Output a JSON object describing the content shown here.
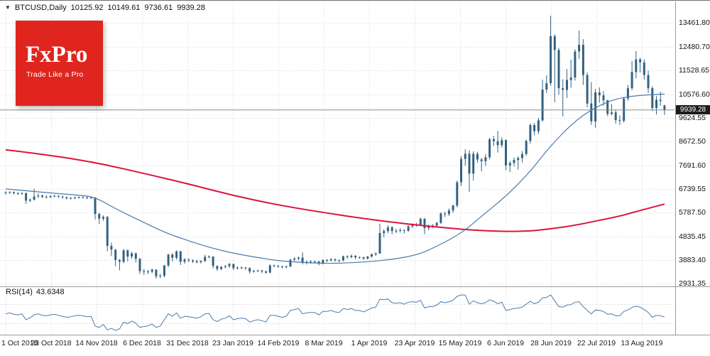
{
  "header": {
    "symbol_period": "BTCUSD,Daily",
    "open": "10125.92",
    "high": "10149.61",
    "low": "9736.61",
    "close": "9939.28"
  },
  "icons": {
    "symbol_marker": "▼"
  },
  "logo": {
    "brand": "FxPro",
    "slogan": "Trade Like a Pro",
    "bg_color": "#e0251f"
  },
  "price_scale": {
    "current_price": "9939.28",
    "tick_labels": [
      "13461.80",
      "12480.70",
      "11528.65",
      "10576.60",
      "9624.55",
      "8672.50",
      "7691.60",
      "6739.55",
      "5787.50",
      "4835.45",
      "3883.40",
      "2931.35"
    ]
  },
  "time_scale": {
    "labels": [
      "1 Oct 2018",
      "23 Oct 2018",
      "14 Nov 2018",
      "6 Dec 2018",
      "31 Dec 2018",
      "23 Jan 2019",
      "14 Feb 2019",
      "8 Mar 2019",
      "1 Apr 2019",
      "23 Apr 2019",
      "15 May 2019",
      "6 Jun 2019",
      "28 Jun 2019",
      "22 Jul 2019",
      "13 Aug 2019"
    ]
  },
  "rsi_panel": {
    "label": "RSI(14)",
    "value": "43.6348"
  },
  "colors": {
    "background": "#ffffff",
    "grid": "#d9d9d9",
    "separator": "#9b9b9b",
    "candle": "#33617f",
    "ma_slow": "#dc143c",
    "ma_fast": "#4a7aad",
    "rsi_line": "#4a7aad",
    "price_tag_bg": "#1c1c1c",
    "logo_bg": "#e0251f",
    "text": "#111111"
  },
  "chart_data": {
    "type": "candlestick",
    "title": "BTCUSD, Daily",
    "symbol": "BTCUSD",
    "timeframe": "Daily",
    "legend_position": "none",
    "grid": true,
    "x_range": [
      "1 Oct 2018",
      "21 Aug 2019"
    ],
    "ylim": [
      2931.35,
      13461.8
    ],
    "last_ohlc": {
      "open": 10125.92,
      "high": 10149.61,
      "low": 9736.61,
      "close": 9939.28
    },
    "current_price": 9939.28,
    "price_ticks": [
      13461.8,
      12480.7,
      11528.65,
      10576.6,
      9624.55,
      8672.5,
      7691.6,
      6739.55,
      5787.5,
      4835.45,
      3883.4,
      2931.35
    ],
    "time_labels": [
      "1 Oct 2018",
      "23 Oct 2018",
      "14 Nov 2018",
      "6 Dec 2018",
      "31 Dec 2018",
      "23 Jan 2019",
      "14 Feb 2019",
      "8 Mar 2019",
      "1 Apr 2019",
      "23 Apr 2019",
      "15 May 2019",
      "6 Jun 2019",
      "28 Jun 2019",
      "22 Jul 2019",
      "13 Aug 2019"
    ],
    "candles": [
      [
        6610,
        6660,
        6520,
        6590
      ],
      [
        6590,
        6660,
        6550,
        6620
      ],
      [
        6620,
        6650,
        6530,
        6580
      ],
      [
        6580,
        6620,
        6500,
        6560
      ],
      [
        6560,
        6620,
        6520,
        6580
      ],
      [
        6580,
        6600,
        6150,
        6280
      ],
      [
        6280,
        6370,
        6220,
        6320
      ],
      [
        6320,
        6760,
        6280,
        6450
      ],
      [
        6450,
        6570,
        6390,
        6480
      ],
      [
        6480,
        6520,
        6380,
        6430
      ],
      [
        6430,
        6490,
        6370,
        6420
      ],
      [
        6420,
        6510,
        6390,
        6460
      ],
      [
        6460,
        6520,
        6420,
        6470
      ],
      [
        6470,
        6500,
        6390,
        6440
      ],
      [
        6440,
        6480,
        6360,
        6410
      ],
      [
        6410,
        6450,
        6330,
        6370
      ],
      [
        6370,
        6420,
        6330,
        6380
      ],
      [
        6380,
        6440,
        6340,
        6400
      ],
      [
        6400,
        6450,
        6360,
        6420
      ],
      [
        6420,
        6450,
        6370,
        6410
      ],
      [
        6410,
        6440,
        6340,
        6380
      ],
      [
        6380,
        6430,
        6350,
        6400
      ],
      [
        6400,
        6420,
        5510,
        5740
      ],
      [
        5740,
        5790,
        5340,
        5550
      ],
      [
        5550,
        5680,
        5460,
        5620
      ],
      [
        5620,
        5650,
        4230,
        4450
      ],
      [
        4450,
        4580,
        4040,
        4300
      ],
      [
        4300,
        4330,
        3630,
        3880
      ],
      [
        3880,
        3920,
        3460,
        3810
      ],
      [
        3810,
        4330,
        3750,
        4270
      ],
      [
        4270,
        4300,
        3830,
        4020
      ],
      [
        4020,
        4210,
        3930,
        4150
      ],
      [
        4150,
        4180,
        3780,
        3930
      ],
      [
        3930,
        3960,
        3320,
        3430
      ],
      [
        3430,
        3520,
        3280,
        3420
      ],
      [
        3420,
        3480,
        3310,
        3410
      ],
      [
        3410,
        3540,
        3350,
        3490
      ],
      [
        3490,
        3510,
        3130,
        3220
      ],
      [
        3220,
        3330,
        3150,
        3240
      ],
      [
        3240,
        3690,
        3180,
        3660
      ],
      [
        3660,
        4130,
        3590,
        4100
      ],
      [
        4100,
        4160,
        3820,
        3970
      ],
      [
        3970,
        4270,
        3900,
        4230
      ],
      [
        4230,
        4250,
        3680,
        3810
      ],
      [
        3810,
        3960,
        3730,
        3900
      ],
      [
        3900,
        3940,
        3790,
        3870
      ],
      [
        3870,
        3900,
        3760,
        3830
      ],
      [
        3830,
        3890,
        3750,
        3790
      ],
      [
        3790,
        3870,
        3740,
        3840
      ],
      [
        3840,
        4090,
        3800,
        4010
      ],
      [
        4010,
        4070,
        3950,
        4020
      ],
      [
        4020,
        4040,
        3540,
        3640
      ],
      [
        3640,
        3660,
        3440,
        3520
      ],
      [
        3520,
        3640,
        3470,
        3600
      ],
      [
        3600,
        3680,
        3540,
        3630
      ],
      [
        3630,
        3760,
        3570,
        3720
      ],
      [
        3720,
        3740,
        3470,
        3550
      ],
      [
        3550,
        3620,
        3500,
        3570
      ],
      [
        3570,
        3620,
        3510,
        3580
      ],
      [
        3580,
        3600,
        3480,
        3560
      ],
      [
        3560,
        3580,
        3330,
        3420
      ],
      [
        3420,
        3480,
        3370,
        3440
      ],
      [
        3440,
        3490,
        3390,
        3460
      ],
      [
        3460,
        3480,
        3350,
        3420
      ],
      [
        3420,
        3450,
        3330,
        3370
      ],
      [
        3370,
        3710,
        3350,
        3660
      ],
      [
        3660,
        3700,
        3590,
        3650
      ],
      [
        3650,
        3680,
        3560,
        3620
      ],
      [
        3620,
        3650,
        3550,
        3590
      ],
      [
        3590,
        3660,
        3550,
        3620
      ],
      [
        3620,
        3930,
        3590,
        3890
      ],
      [
        3890,
        3990,
        3830,
        3940
      ],
      [
        3940,
        4020,
        3870,
        3980
      ],
      [
        3980,
        4190,
        3700,
        3770
      ],
      [
        3770,
        3860,
        3700,
        3810
      ],
      [
        3810,
        3870,
        3740,
        3820
      ],
      [
        3820,
        3860,
        3750,
        3820
      ],
      [
        3820,
        3850,
        3660,
        3730
      ],
      [
        3730,
        3910,
        3700,
        3880
      ],
      [
        3880,
        3920,
        3800,
        3870
      ],
      [
        3870,
        3960,
        3820,
        3910
      ],
      [
        3910,
        3940,
        3820,
        3870
      ],
      [
        3870,
        3900,
        3790,
        3860
      ],
      [
        3860,
        4060,
        3830,
        4030
      ],
      [
        4030,
        4070,
        3930,
        4000
      ],
      [
        4000,
        4110,
        3950,
        4050
      ],
      [
        4050,
        4080,
        3910,
        3990
      ],
      [
        3990,
        4030,
        3930,
        3990
      ],
      [
        3990,
        4020,
        3880,
        3940
      ],
      [
        3940,
        4050,
        3900,
        4020
      ],
      [
        4020,
        4140,
        3980,
        4110
      ],
      [
        4110,
        4180,
        4050,
        4150
      ],
      [
        4150,
        5350,
        4130,
        4970
      ],
      [
        4970,
        5120,
        4790,
        5050
      ],
      [
        5050,
        5290,
        4970,
        5200
      ],
      [
        5200,
        5250,
        4920,
        5050
      ],
      [
        5050,
        5140,
        4970,
        5060
      ],
      [
        5060,
        5170,
        4990,
        5090
      ],
      [
        5090,
        5120,
        4950,
        5060
      ],
      [
        5060,
        5290,
        5010,
        5240
      ],
      [
        5240,
        5360,
        5170,
        5300
      ],
      [
        5300,
        5380,
        5220,
        5310
      ],
      [
        5310,
        5600,
        5260,
        5540
      ],
      [
        5540,
        5580,
        4920,
        5170
      ],
      [
        5170,
        5310,
        5080,
        5260
      ],
      [
        5260,
        5330,
        5160,
        5270
      ],
      [
        5270,
        5420,
        5190,
        5380
      ],
      [
        5380,
        5810,
        5330,
        5760
      ],
      [
        5760,
        5830,
        5620,
        5740
      ],
      [
        5740,
        5960,
        5660,
        5880
      ],
      [
        5880,
        6120,
        5790,
        6080
      ],
      [
        6080,
        7090,
        6010,
        7020
      ],
      [
        7020,
        8070,
        6870,
        7960
      ],
      [
        7960,
        8350,
        7680,
        8170
      ],
      [
        8170,
        8310,
        6630,
        7370
      ],
      [
        7370,
        8270,
        7090,
        8170
      ],
      [
        8170,
        8250,
        7810,
        7940
      ],
      [
        7940,
        8010,
        7460,
        7870
      ],
      [
        7870,
        8160,
        7680,
        8030
      ],
      [
        8030,
        8820,
        7940,
        8760
      ],
      [
        8760,
        8890,
        8480,
        8680
      ],
      [
        8680,
        9090,
        8220,
        8520
      ],
      [
        8520,
        8830,
        8420,
        8720
      ],
      [
        8720,
        8760,
        7510,
        7700
      ],
      [
        7700,
        7880,
        7430,
        7800
      ],
      [
        7800,
        8020,
        7660,
        7920
      ],
      [
        7920,
        8070,
        7530,
        8000
      ],
      [
        8000,
        8280,
        7820,
        8160
      ],
      [
        8160,
        8740,
        8090,
        8690
      ],
      [
        8690,
        9390,
        8580,
        9330
      ],
      [
        9330,
        9420,
        8910,
        9080
      ],
      [
        9080,
        9620,
        8960,
        9520
      ],
      [
        9520,
        11160,
        9470,
        10760
      ],
      [
        10760,
        11340,
        10620,
        11020
      ],
      [
        11020,
        13750,
        10920,
        12920
      ],
      [
        12920,
        13000,
        10250,
        12360
      ],
      [
        12360,
        12440,
        10550,
        10820
      ],
      [
        10820,
        11180,
        9680,
        10750
      ],
      [
        10750,
        11590,
        10420,
        11150
      ],
      [
        11150,
        11970,
        10830,
        11250
      ],
      [
        11250,
        12390,
        11130,
        12300
      ],
      [
        12300,
        13150,
        12000,
        12570
      ],
      [
        12570,
        12800,
        10950,
        11350
      ],
      [
        11350,
        11450,
        10050,
        10200
      ],
      [
        10200,
        11070,
        9340,
        9480
      ],
      [
        9480,
        10790,
        9220,
        10650
      ],
      [
        10650,
        10850,
        10230,
        10530
      ],
      [
        10530,
        10700,
        10110,
        10330
      ],
      [
        10330,
        10350,
        9690,
        9780
      ],
      [
        9780,
        10180,
        9720,
        9840
      ],
      [
        9840,
        9930,
        9390,
        9530
      ],
      [
        9530,
        9720,
        9330,
        9500
      ],
      [
        9500,
        10470,
        9430,
        10400
      ],
      [
        10400,
        10950,
        10310,
        10820
      ],
      [
        10820,
        11920,
        10740,
        11470
      ],
      [
        11470,
        12320,
        11210,
        11980
      ],
      [
        11980,
        12050,
        11450,
        11860
      ],
      [
        11860,
        11980,
        11170,
        11350
      ],
      [
        11350,
        11530,
        10620,
        10820
      ],
      [
        10820,
        10900,
        9900,
        10020
      ],
      [
        10020,
        10500,
        9760,
        10350
      ],
      [
        10350,
        10680,
        10110,
        10300
      ],
      [
        10125.92,
        10149.61,
        9736.61,
        9939.28
      ]
    ],
    "overlays": [
      {
        "name": "slow-ma",
        "color": "#dc143c",
        "points": [
          [
            0,
            8330
          ],
          [
            11,
            8110
          ],
          [
            22,
            7820
          ],
          [
            34,
            7380
          ],
          [
            45,
            6950
          ],
          [
            56,
            6480
          ],
          [
            67,
            6100
          ],
          [
            78,
            5800
          ],
          [
            89,
            5530
          ],
          [
            100,
            5310
          ],
          [
            107,
            5200
          ],
          [
            112,
            5120
          ],
          [
            118,
            5060
          ],
          [
            123,
            5030
          ],
          [
            129,
            5050
          ],
          [
            134,
            5140
          ],
          [
            140,
            5280
          ],
          [
            145,
            5450
          ],
          [
            151,
            5650
          ],
          [
            156,
            5880
          ],
          [
            162,
            6140
          ]
        ]
      },
      {
        "name": "fast-ma",
        "color": "#4a7aad",
        "points": [
          [
            0,
            6750
          ],
          [
            10,
            6600
          ],
          [
            18,
            6500
          ],
          [
            22,
            6420
          ],
          [
            27,
            5950
          ],
          [
            34,
            5400
          ],
          [
            39,
            5000
          ],
          [
            45,
            4650
          ],
          [
            51,
            4350
          ],
          [
            56,
            4150
          ],
          [
            62,
            3980
          ],
          [
            67,
            3850
          ],
          [
            72,
            3790
          ],
          [
            78,
            3740
          ],
          [
            84,
            3760
          ],
          [
            89,
            3810
          ],
          [
            95,
            3900
          ],
          [
            101,
            4080
          ],
          [
            105,
            4350
          ],
          [
            112,
            4950
          ],
          [
            117,
            5650
          ],
          [
            123,
            6450
          ],
          [
            129,
            7450
          ],
          [
            134,
            8500
          ],
          [
            140,
            9500
          ],
          [
            145,
            10050
          ],
          [
            150,
            10400
          ],
          [
            156,
            10540
          ],
          [
            162,
            10580
          ]
        ]
      }
    ],
    "indicator": {
      "name": "RSI",
      "period": 14,
      "current": 43.6348,
      "levels": [
        30,
        70
      ],
      "values": [
        50,
        52,
        49,
        48,
        50,
        38,
        42,
        48,
        50,
        47,
        46,
        48,
        49,
        47,
        45,
        43,
        44,
        46,
        47,
        46,
        44,
        45,
        25,
        22,
        28,
        17,
        20,
        16,
        19,
        33,
        30,
        35,
        31,
        22,
        24,
        25,
        29,
        22,
        25,
        38,
        50,
        45,
        52,
        41,
        45,
        44,
        43,
        41,
        44,
        50,
        51,
        38,
        34,
        39,
        41,
        46,
        38,
        40,
        41,
        40,
        33,
        36,
        38,
        36,
        33,
        47,
        47,
        45,
        43,
        45,
        57,
        59,
        61,
        50,
        52,
        53,
        53,
        48,
        55,
        55,
        57,
        54,
        53,
        61,
        59,
        61,
        57,
        57,
        54,
        58,
        62,
        64,
        80,
        79,
        81,
        73,
        72,
        73,
        70,
        74,
        75,
        74,
        78,
        62,
        65,
        65,
        68,
        75,
        73,
        75,
        78,
        86,
        89,
        89,
        70,
        77,
        73,
        71,
        73,
        79,
        76,
        71,
        74,
        57,
        59,
        61,
        62,
        64,
        70,
        76,
        71,
        74,
        83,
        84,
        89,
        77,
        65,
        64,
        68,
        69,
        74,
        75,
        65,
        57,
        50,
        58,
        57,
        55,
        49,
        50,
        46,
        46,
        55,
        58,
        63,
        66,
        64,
        59,
        53,
        43,
        47,
        46,
        43.63
      ]
    }
  }
}
